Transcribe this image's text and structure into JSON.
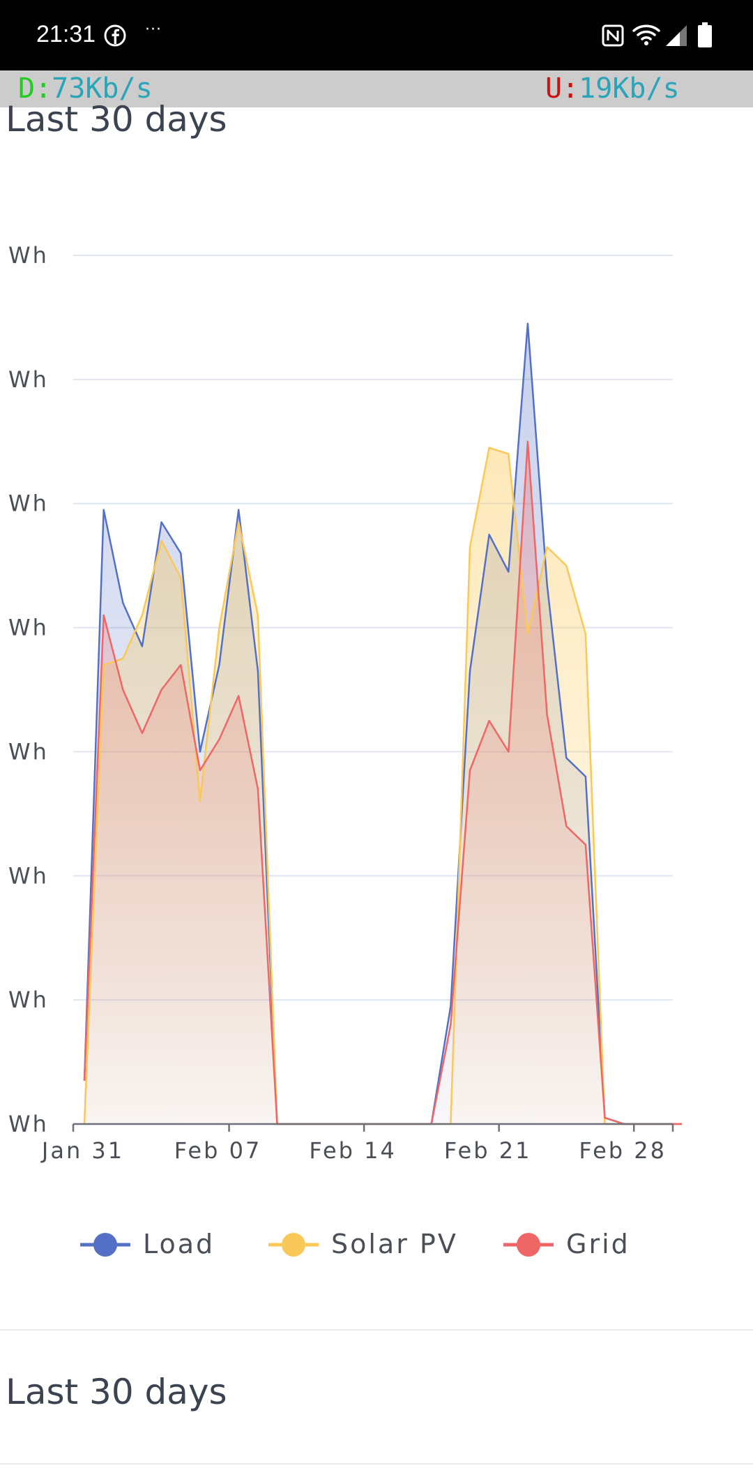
{
  "status_bar": {
    "time": "21:31",
    "more": "···",
    "icons": [
      "facebook-icon",
      "more-icon",
      "nfc-icon",
      "wifi-icon",
      "signal-icon",
      "battery-icon"
    ]
  },
  "speed_bar": {
    "down_label": "D:",
    "down_value": "73Kb/s",
    "up_label": "U:",
    "up_value": "19Kb/s"
  },
  "sections": [
    {
      "title": "Last 30 days"
    },
    {
      "title": "Last 30 days"
    }
  ],
  "colors": {
    "load": "#5470c6",
    "solar": "#fac858",
    "grid": "#ee6666"
  },
  "chart_data": {
    "type": "area",
    "title": "Last 30 days",
    "y_tick_labels": [
      "Wh",
      "Wh",
      "Wh",
      "Wh",
      "Wh",
      "Wh",
      "Wh",
      "Wh"
    ],
    "x_tick_labels": [
      "Jan 31",
      "Feb 07",
      "Feb 14",
      "Feb 21",
      "Feb 28"
    ],
    "ylim": [
      0,
      7
    ],
    "grid": true,
    "legend_position": "bottom",
    "x": [
      "Jan 31",
      "Feb 01",
      "Feb 02",
      "Feb 03",
      "Feb 04",
      "Feb 05",
      "Feb 06",
      "Feb 07",
      "Feb 08",
      "Feb 09",
      "Feb 10",
      "Feb 11",
      "Feb 12",
      "Feb 13",
      "Feb 14",
      "Feb 15",
      "Feb 16",
      "Feb 17",
      "Feb 18",
      "Feb 19",
      "Feb 20",
      "Feb 21",
      "Feb 22",
      "Feb 23",
      "Feb 24",
      "Feb 25",
      "Feb 26",
      "Feb 27",
      "Feb 28",
      "Mar 01",
      "Mar 02",
      "Mar 03"
    ],
    "series": [
      {
        "name": "Load",
        "color": "#5470c6",
        "values": [
          0.35,
          4.95,
          4.2,
          3.85,
          4.85,
          4.6,
          3.0,
          3.7,
          4.95,
          3.65,
          0.0,
          0.0,
          0.0,
          0.0,
          0.0,
          0.0,
          0.0,
          0.0,
          0.0,
          0.95,
          3.65,
          4.75,
          4.45,
          6.45,
          4.35,
          2.95,
          2.8,
          0.05,
          0.0,
          0.0,
          0.0,
          0.0
        ]
      },
      {
        "name": "Solar PV",
        "color": "#fac858",
        "values": [
          0.0,
          3.7,
          3.75,
          4.1,
          4.7,
          4.4,
          2.6,
          4.0,
          4.85,
          4.1,
          0.0,
          0.0,
          0.0,
          0.0,
          0.0,
          0.0,
          0.0,
          0.0,
          0.0,
          0.0,
          4.65,
          5.45,
          5.4,
          3.95,
          4.65,
          4.5,
          3.95,
          0.0,
          0.0,
          0.0,
          0.0,
          0.0
        ]
      },
      {
        "name": "Grid",
        "color": "#ee6666",
        "values": [
          0.35,
          4.1,
          3.5,
          3.15,
          3.5,
          3.7,
          2.85,
          3.1,
          3.45,
          2.7,
          0.0,
          0.0,
          0.0,
          0.0,
          0.0,
          0.0,
          0.0,
          0.0,
          0.0,
          0.8,
          2.85,
          3.25,
          3.0,
          5.5,
          3.3,
          2.4,
          2.25,
          0.05,
          0.0,
          0.0,
          0.0,
          0.0
        ]
      }
    ]
  }
}
